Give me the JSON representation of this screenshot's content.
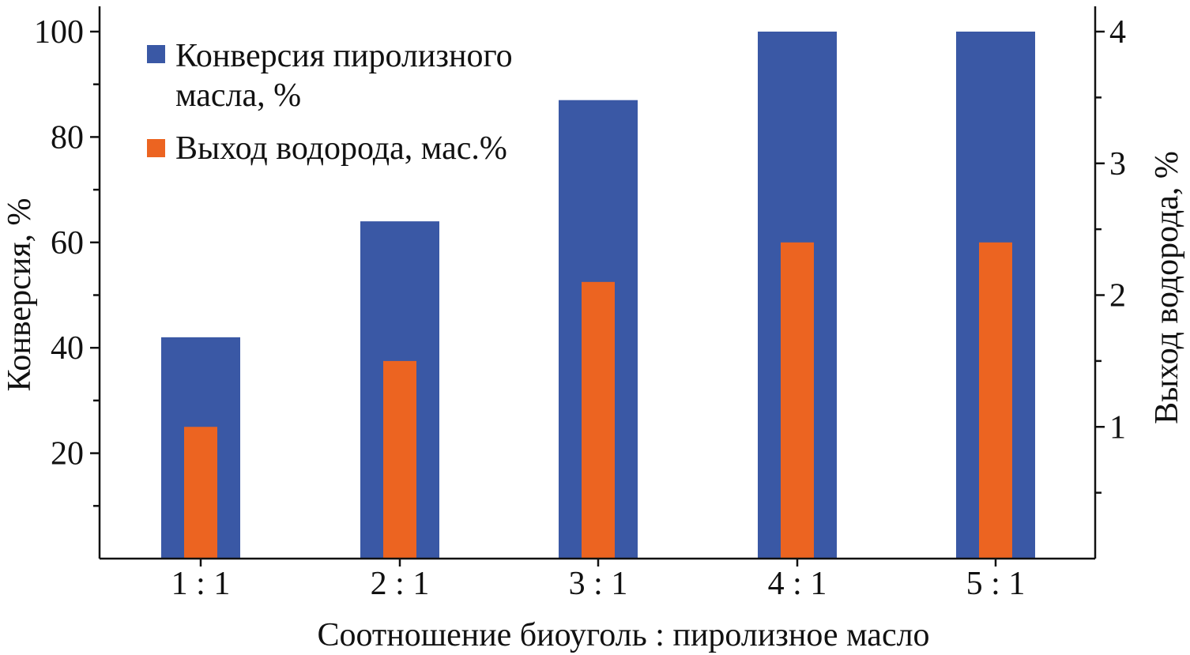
{
  "chart_data": {
    "type": "bar",
    "categories": [
      "1 : 1",
      "2 : 1",
      "3 : 1",
      "4 : 1",
      "5 : 1"
    ],
    "series": [
      {
        "name": "Конверсия пиролизного масла, %",
        "axis": "left",
        "values": [
          42,
          64,
          87,
          100,
          100
        ],
        "color": "#3a58a5"
      },
      {
        "name": "Выход водорода, мас.%",
        "axis": "right",
        "values": [
          1.0,
          1.5,
          2.1,
          2.4,
          2.4
        ],
        "color": "#ec6421"
      }
    ],
    "legend_lines": [
      [
        "Конверсия пиролизного",
        "масла, %"
      ],
      [
        "Выход водорода, мас.%"
      ]
    ],
    "xlabel": "Соотношение биоуголь : пиролизное масло",
    "ylabel": "Конверсия, %",
    "y2label": "Выход водорода, %",
    "ylim": [
      0,
      100
    ],
    "y2lim": [
      0,
      4
    ],
    "y_ticks": [
      20,
      40,
      60,
      80,
      100
    ],
    "y_minor_ticks": [
      10,
      30,
      50,
      70,
      90
    ],
    "y2_ticks": [
      1,
      2,
      3,
      4
    ],
    "y2_minor_ticks": [
      0.5,
      1.5,
      2.5,
      3.5
    ],
    "legend_position": "top-left",
    "grid": false
  }
}
